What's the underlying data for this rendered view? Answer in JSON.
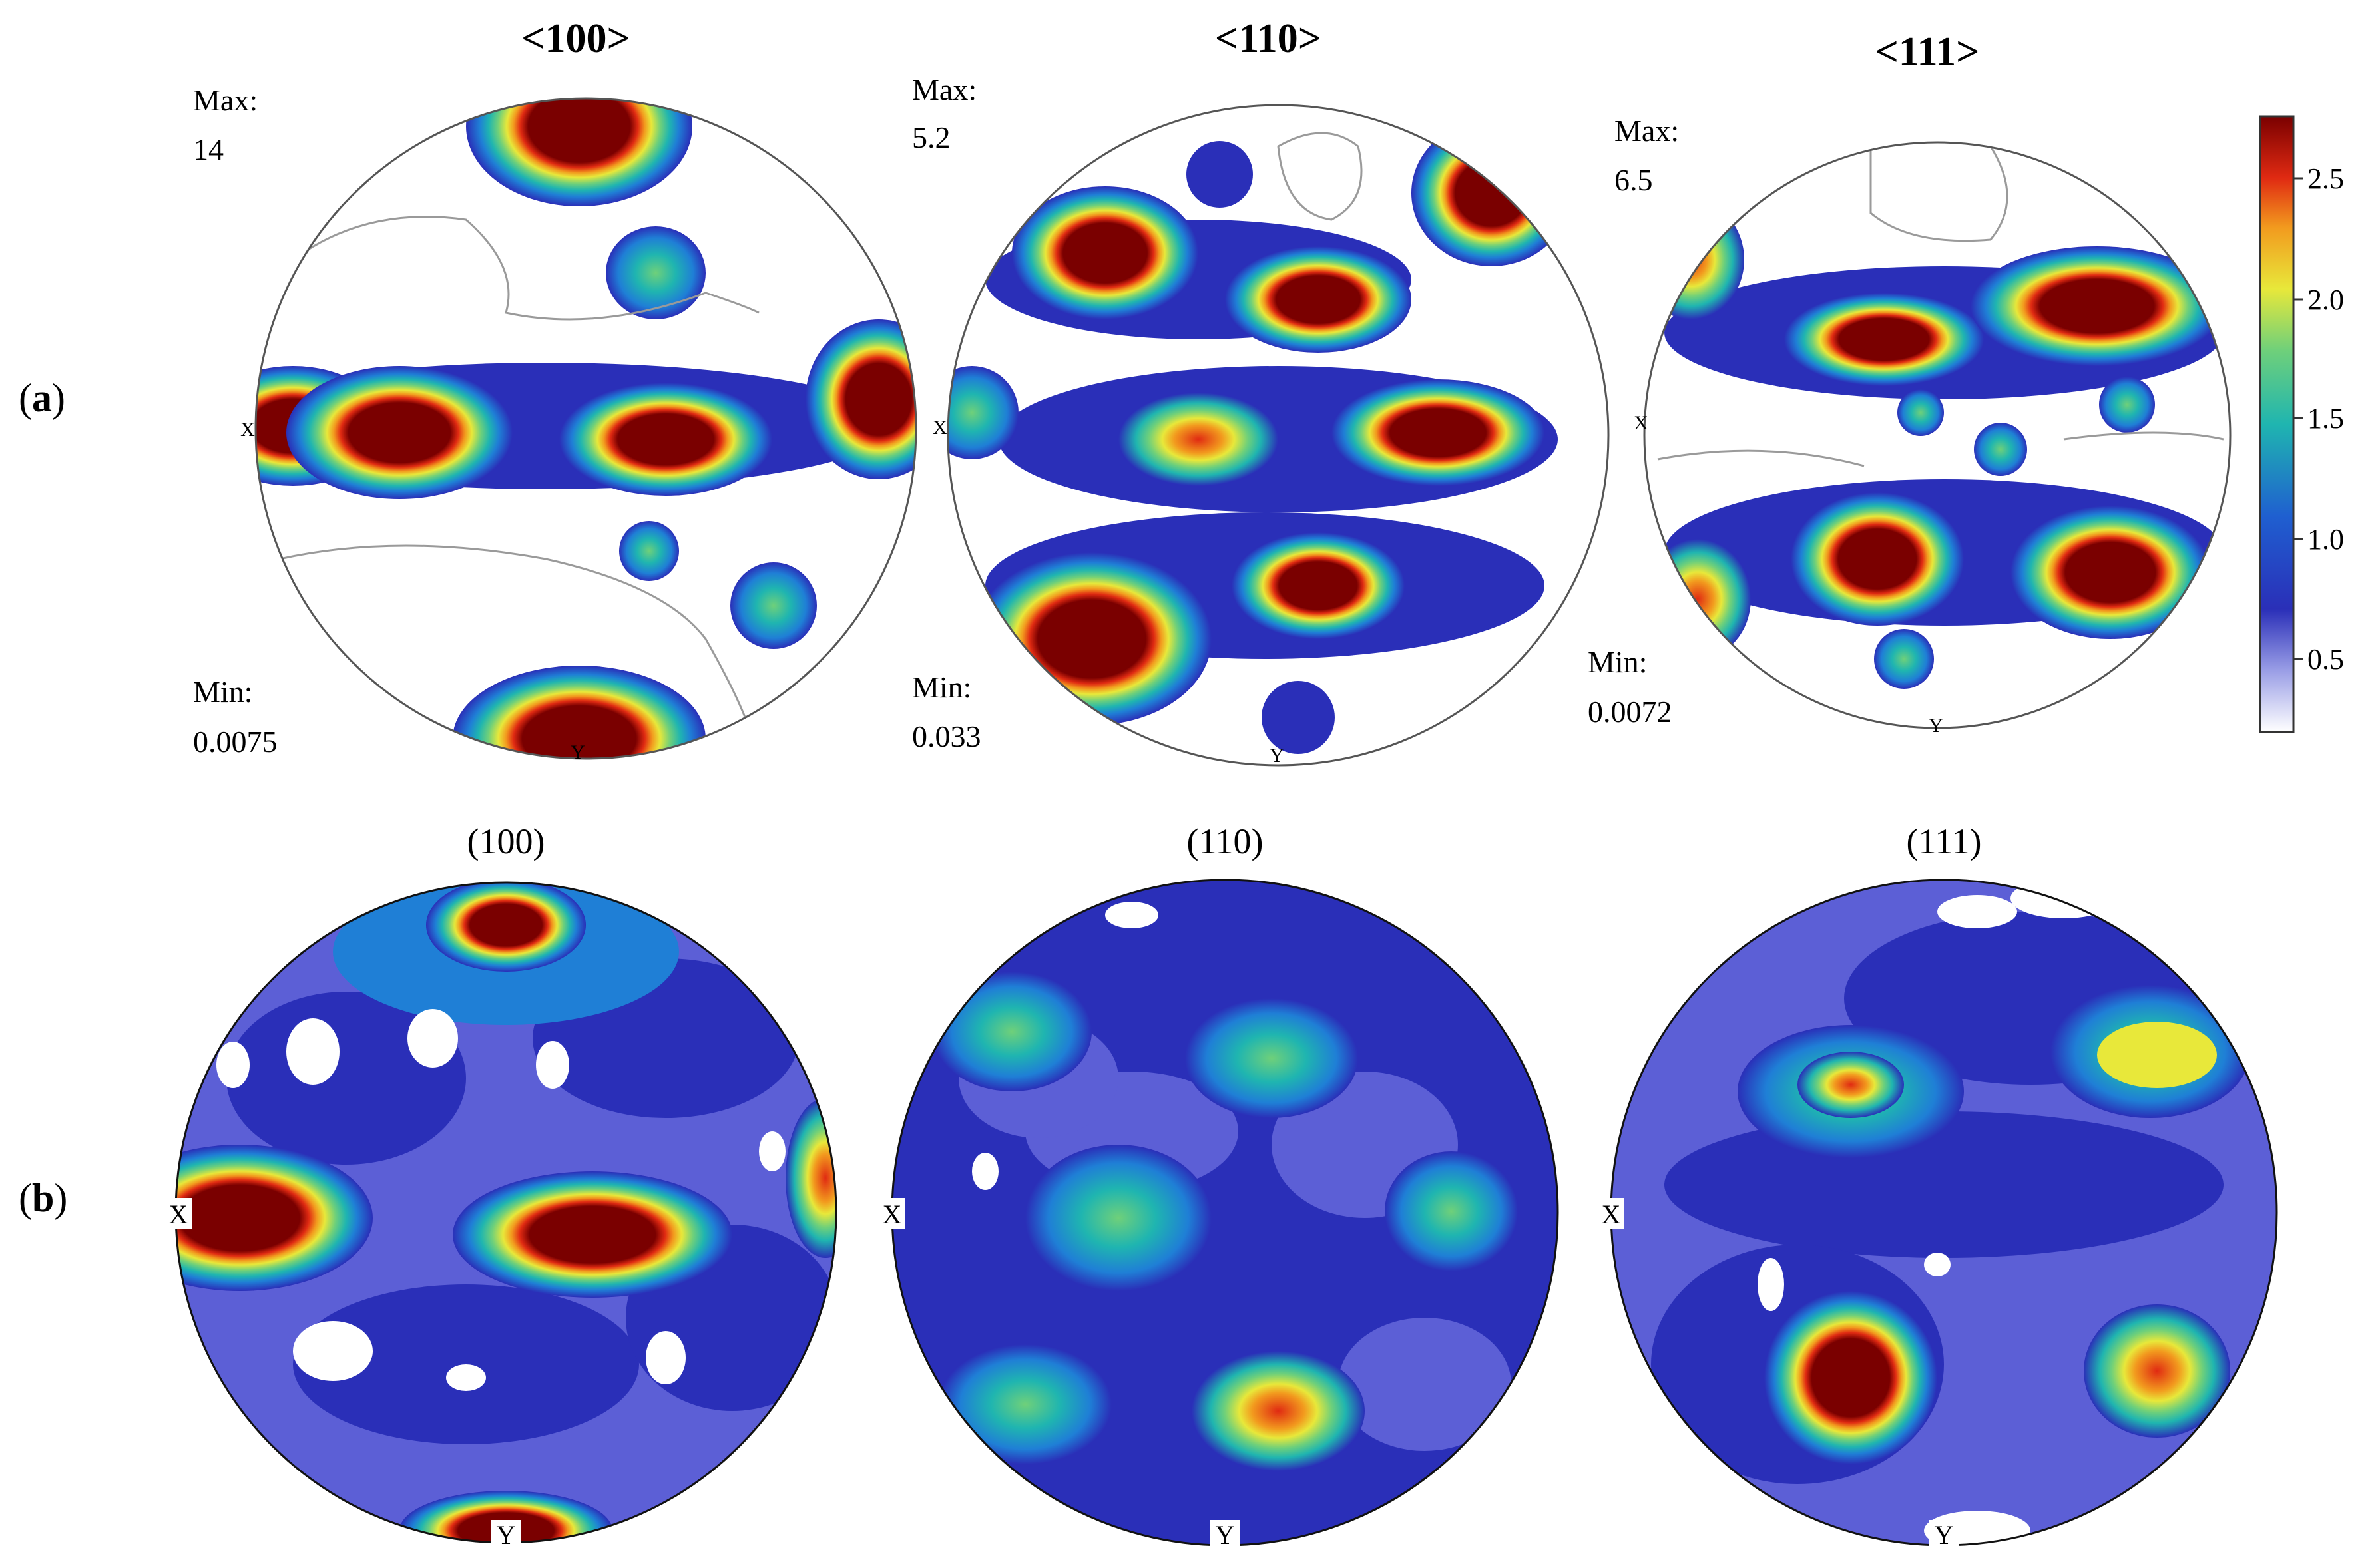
{
  "figure": {
    "row_a": {
      "label_open": "(",
      "label_letter": "a",
      "label_close": ")",
      "panels": [
        {
          "title": "<100>",
          "max_label": "Max:",
          "max_value": "14",
          "min_label": "Min:",
          "min_value": "0.0075",
          "x_label": "X",
          "y_label": "Y"
        },
        {
          "title": "<110>",
          "max_label": "Max:",
          "max_value": "5.2",
          "min_label": "Min:",
          "min_value": "0.033",
          "x_label": "X",
          "y_label": "Y"
        },
        {
          "title": "<111>",
          "max_label": "Max:",
          "max_value": "6.5",
          "min_label": "Min:",
          "min_value": "0.0072",
          "x_label": "X",
          "y_label": "Y"
        }
      ]
    },
    "row_b": {
      "label_open": "(",
      "label_letter": "b",
      "label_close": ")",
      "panels": [
        {
          "title": "(100)",
          "x_label": "X",
          "y_label": "Y"
        },
        {
          "title": "(110)",
          "x_label": "X",
          "y_label": "Y"
        },
        {
          "title": "(111)",
          "x_label": "X",
          "y_label": "Y"
        }
      ]
    },
    "colorbar": {
      "ticks": [
        "2.5",
        "2.0",
        "1.5",
        "1.0",
        "0.5"
      ],
      "colors": [
        "#ffffff",
        "#2a2fb8",
        "#1f7fd6",
        "#1fb5b0",
        "#6fd07a",
        "#e8e83a",
        "#f29a1e",
        "#e02a12",
        "#7a0000"
      ]
    }
  }
}
